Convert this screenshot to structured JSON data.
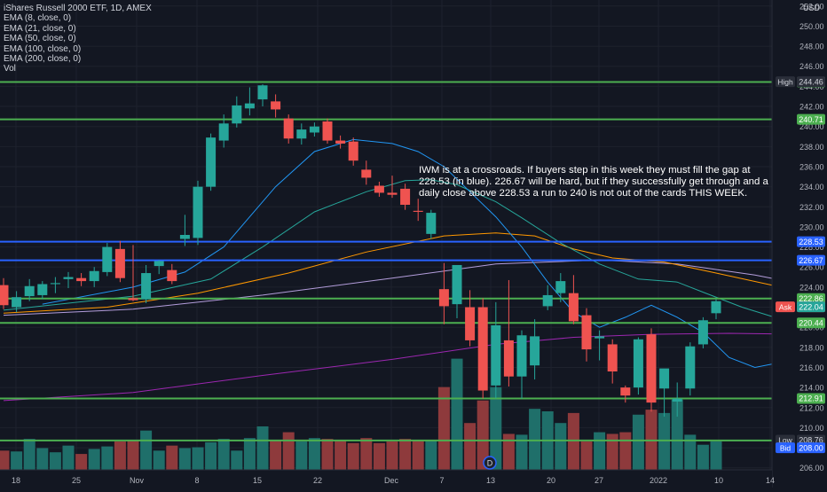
{
  "header": {
    "title": "iShares Russell 2000 ETF, 1D, AMEX",
    "indicators": [
      "EMA (8, close, 0)",
      "EMA (21, close, 0)",
      "EMA (50, close, 0)",
      "EMA (100, close, 0)",
      "EMA (200, close, 0)",
      "Vol"
    ]
  },
  "currency": "USD",
  "annotation": "IWM is at a crossroads. If buyers step in this week they must fill the gap at 228.53 (in blue). 226.67 will be hard, but if they successfully get through and a daily close above 228.53 a run to 240 is not out of the cards THIS WEEK.",
  "colors": {
    "background": "#131722",
    "up": "#26a69a",
    "down": "#ef5350",
    "vol_up": "#1f6f6a",
    "vol_down": "#8e3a3c",
    "green_level": "#4caf50",
    "blue_level": "#2962ff",
    "ema8": "#2196f3",
    "ema21": "#26a69a",
    "ema50": "#ff9800",
    "ema100": "#b39ddb",
    "ema200": "#9c27b0"
  },
  "chart_data": {
    "type": "candlestick",
    "title": "iShares Russell 2000 ETF, 1D, AMEX",
    "y_axis": {
      "range": [
        205.8,
        252.6
      ],
      "ticks": [
        "206.00",
        "208.00",
        "210.00",
        "212.00",
        "214.00",
        "216.00",
        "218.00",
        "220.00",
        "222.00",
        "224.00",
        "226.00",
        "228.00",
        "230.00",
        "232.00",
        "234.00",
        "236.00",
        "238.00",
        "240.00",
        "242.00",
        "244.00",
        "246.00",
        "248.00",
        "250.00",
        "252.00"
      ]
    },
    "x_axis": {
      "labels": [
        "18",
        "25",
        "Nov",
        "8",
        "15",
        "22",
        "Dec",
        "7",
        "13",
        "20",
        "27",
        "2022",
        "10",
        "14"
      ]
    },
    "candles": [
      [
        224.2,
        224.9,
        221.8,
        222.2
      ],
      [
        222.0,
        223.6,
        221.5,
        223.0
      ],
      [
        223.1,
        224.8,
        222.6,
        224.1
      ],
      [
        223.2,
        224.6,
        222.8,
        224.3
      ],
      [
        224.3,
        225.0,
        223.4,
        224.4
      ],
      [
        224.8,
        225.5,
        223.9,
        225.0
      ],
      [
        224.9,
        225.4,
        224.1,
        224.6
      ],
      [
        224.6,
        226.0,
        224.0,
        225.6
      ],
      [
        225.5,
        228.4,
        225.1,
        228.0
      ],
      [
        227.8,
        228.6,
        224.5,
        224.9
      ],
      [
        222.9,
        228.2,
        222.6,
        222.7
      ],
      [
        222.8,
        226.2,
        222.4,
        225.4
      ],
      [
        226.1,
        226.7,
        225.3,
        226.6
      ],
      [
        225.7,
        226.3,
        224.3,
        224.6
      ],
      [
        228.8,
        231.2,
        228.1,
        229.2
      ],
      [
        228.9,
        234.6,
        228.2,
        234.0
      ],
      [
        234.0,
        239.3,
        233.6,
        238.9
      ],
      [
        238.6,
        241.2,
        237.9,
        240.3
      ],
      [
        240.3,
        243.0,
        239.9,
        242.1
      ],
      [
        241.8,
        243.9,
        241.1,
        242.3
      ],
      [
        242.7,
        244.2,
        242.0,
        244.1
      ],
      [
        242.5,
        243.2,
        240.9,
        241.7
      ],
      [
        240.8,
        241.2,
        238.3,
        238.8
      ],
      [
        238.8,
        240.3,
        238.2,
        239.7
      ],
      [
        239.4,
        240.4,
        239.0,
        240.0
      ],
      [
        240.5,
        240.8,
        238.3,
        238.6
      ],
      [
        238.6,
        239.1,
        237.8,
        238.3
      ],
      [
        238.5,
        238.9,
        236.1,
        236.6
      ],
      [
        235.7,
        236.6,
        234.2,
        234.9
      ],
      [
        234.1,
        234.5,
        233.0,
        233.4
      ],
      [
        233.4,
        235.1,
        232.9,
        233.2
      ],
      [
        233.8,
        234.3,
        231.7,
        232.2
      ],
      [
        231.6,
        232.8,
        230.6,
        231.5
      ],
      [
        229.3,
        231.7,
        228.8,
        231.4
      ],
      [
        223.8,
        226.4,
        220.3,
        222.1
      ],
      [
        222.3,
        226.0,
        220.9,
        226.2
      ],
      [
        222.0,
        223.7,
        218.1,
        218.7
      ],
      [
        222.0,
        222.9,
        212.9,
        213.7
      ],
      [
        214.2,
        222.5,
        212.9,
        220.2
      ],
      [
        218.7,
        224.7,
        214.1,
        215.1
      ],
      [
        215.1,
        219.7,
        212.9,
        219.2
      ],
      [
        216.2,
        220.8,
        214.8,
        219.1
      ],
      [
        222.1,
        224.2,
        221.7,
        223.2
      ],
      [
        223.4,
        225.4,
        222.5,
        224.6
      ],
      [
        223.4,
        225.2,
        220.3,
        220.6
      ],
      [
        221.2,
        221.9,
        216.6,
        217.8
      ],
      [
        218.9,
        219.7,
        216.7,
        219.1
      ],
      [
        218.3,
        218.8,
        214.4,
        215.6
      ],
      [
        214.0,
        214.2,
        212.5,
        213.2
      ],
      [
        214.0,
        219.0,
        213.3,
        218.8
      ],
      [
        219.3,
        219.9,
        211.6,
        212.5
      ],
      [
        213.9,
        215.8,
        211.1,
        215.9
      ],
      [
        212.6,
        214.5,
        211.1,
        212.9
      ],
      [
        213.9,
        218.5,
        213.2,
        218.1
      ],
      [
        218.3,
        221.0,
        217.9,
        220.7
      ],
      [
        221.4,
        222.8,
        220.8,
        222.6
      ]
    ],
    "volume": [
      23,
      22,
      37,
      26,
      21,
      29,
      19,
      25,
      28,
      34,
      36,
      47,
      23,
      29,
      26,
      27,
      33,
      37,
      23,
      38,
      52,
      35,
      45,
      34,
      38,
      37,
      35,
      32,
      38,
      32,
      34,
      37,
      35,
      36,
      99,
      133,
      56,
      83,
      99,
      43,
      42,
      73,
      70,
      56,
      68,
      34,
      45,
      43,
      45,
      66,
      72,
      68,
      84,
      42,
      30,
      34
    ],
    "ema8": [
      [
        3,
        222.3
      ],
      [
        10,
        224.0
      ],
      [
        14,
        225.5
      ],
      [
        17,
        228.0
      ],
      [
        19,
        231.0
      ],
      [
        21,
        234.0
      ],
      [
        24,
        237.5
      ],
      [
        27,
        238.7
      ],
      [
        30,
        238.3
      ],
      [
        32,
        237.5
      ],
      [
        34,
        236.0
      ],
      [
        36,
        233.5
      ],
      [
        38,
        231.0
      ],
      [
        40,
        228.0
      ],
      [
        42,
        224.5
      ],
      [
        44,
        221.5
      ],
      [
        46,
        220.0
      ],
      [
        48,
        221.0
      ],
      [
        50,
        222.2
      ],
      [
        52,
        221.0
      ],
      [
        54,
        219.5
      ],
      [
        56,
        217.0
      ],
      [
        58,
        216.0
      ],
      [
        60,
        216.5
      ],
      [
        62,
        217.8
      ],
      [
        64,
        219.0
      ],
      [
        66,
        218.6
      ]
    ],
    "ema21": [
      [
        0,
        221.7
      ],
      [
        10,
        223.1
      ],
      [
        16,
        224.8
      ],
      [
        20,
        228.0
      ],
      [
        24,
        231.5
      ],
      [
        28,
        233.5
      ],
      [
        31,
        234.6
      ],
      [
        33,
        234.7
      ],
      [
        35,
        234.2
      ],
      [
        38,
        232.5
      ],
      [
        40,
        230.9
      ],
      [
        43,
        228.4
      ],
      [
        46,
        226.3
      ],
      [
        49,
        224.8
      ],
      [
        52,
        224.5
      ],
      [
        54,
        223.5
      ],
      [
        57,
        222.0
      ],
      [
        60,
        220.8
      ],
      [
        63,
        220.3
      ],
      [
        66,
        220.3
      ]
    ],
    "ema50": [
      [
        0,
        221.4
      ],
      [
        8,
        222.0
      ],
      [
        15,
        223.4
      ],
      [
        22,
        225.4
      ],
      [
        28,
        227.5
      ],
      [
        34,
        229.1
      ],
      [
        38,
        229.4
      ],
      [
        41,
        229.1
      ],
      [
        44,
        227.8
      ],
      [
        47,
        226.9
      ],
      [
        51,
        226.5
      ],
      [
        55,
        225.4
      ],
      [
        60,
        224.0
      ],
      [
        64,
        223.1
      ],
      [
        66,
        223.0
      ]
    ],
    "ema100": [
      [
        0,
        221.2
      ],
      [
        10,
        221.8
      ],
      [
        20,
        223.2
      ],
      [
        30,
        224.9
      ],
      [
        38,
        226.3
      ],
      [
        46,
        226.7
      ],
      [
        52,
        226.3
      ],
      [
        58,
        225.2
      ],
      [
        62,
        224.2
      ],
      [
        66,
        223.3
      ]
    ],
    "ema200": [
      [
        0,
        212.7
      ],
      [
        10,
        213.5
      ],
      [
        20,
        215.2
      ],
      [
        30,
        216.8
      ],
      [
        38,
        218.3
      ],
      [
        44,
        219.0
      ],
      [
        50,
        219.3
      ],
      [
        56,
        219.4
      ],
      [
        62,
        219.3
      ],
      [
        66,
        219.3
      ]
    ],
    "levels": [
      {
        "value": 244.43,
        "label": "244.43",
        "kind": "green"
      },
      {
        "value": 240.71,
        "label": "240.71",
        "kind": "green"
      },
      {
        "value": 228.53,
        "label": "228.53",
        "kind": "blue"
      },
      {
        "value": 226.67,
        "label": "226.67",
        "kind": "blue"
      },
      {
        "value": 222.86,
        "label": "222.86",
        "kind": "green"
      },
      {
        "value": 220.44,
        "label": "220.44",
        "kind": "green"
      },
      {
        "value": 212.91,
        "label": "212.91",
        "kind": "green"
      },
      {
        "value": 208.72,
        "label": "208.72",
        "kind": "green"
      }
    ],
    "price_tags": [
      {
        "name": "High",
        "value": 244.46,
        "label": "244.46",
        "color": "#2a2e39",
        "text_color": "#d1d4dc"
      },
      {
        "name": "Ask",
        "value": 222.04,
        "label": "222.04",
        "color": "#ef5350",
        "text_color": "#ffffff"
      },
      {
        "name": "",
        "value": 222.04,
        "label": "222.04",
        "color": "#26a69a",
        "text_color": "#ffffff"
      },
      {
        "name": "Low",
        "value": 208.76,
        "label": "208.76",
        "color": "#2a2e39",
        "text_color": "#d1d4dc"
      },
      {
        "name": "Bid",
        "value": 208.0,
        "label": "208.00",
        "color": "#2962ff",
        "text_color": "#ffffff"
      }
    ]
  },
  "event_badge": "D"
}
